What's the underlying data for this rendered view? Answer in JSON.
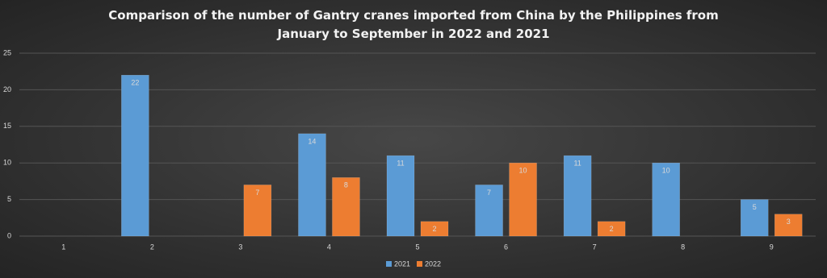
{
  "chart_data": {
    "type": "bar",
    "title": "Comparison of the number of Gantry cranes imported from China by the Philippines from January to September in 2022 and 2021",
    "categories": [
      "1",
      "2",
      "3",
      "4",
      "5",
      "6",
      "7",
      "8",
      "9"
    ],
    "series": [
      {
        "name": "2021",
        "color": "#5b9bd5",
        "values": [
          null,
          22,
          null,
          14,
          11,
          7,
          11,
          10,
          5
        ]
      },
      {
        "name": "2022",
        "color": "#ed7d31",
        "values": [
          null,
          null,
          7,
          8,
          2,
          10,
          2,
          null,
          3
        ]
      }
    ],
    "ylim": [
      0,
      25
    ],
    "yticks": [
      0,
      5,
      10,
      15,
      20,
      25
    ],
    "grid": true,
    "legend": "bottom"
  }
}
